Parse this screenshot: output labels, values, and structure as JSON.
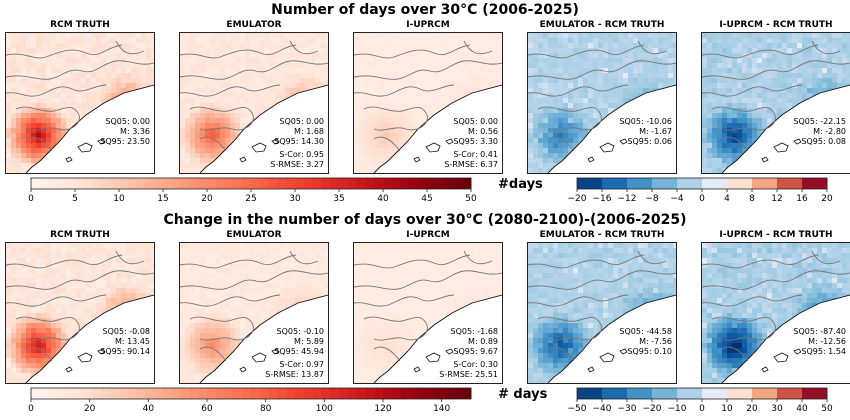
{
  "figure": {
    "rows": [
      {
        "title": "Number of days over 30°C (2006-2025)",
        "colorbar_label": "#days",
        "seq_cmap": {
          "ticks": [
            0,
            5,
            10,
            15,
            20,
            25,
            30,
            35,
            40,
            45,
            50
          ],
          "range": [
            0,
            50
          ]
        },
        "div_cmap": {
          "ticks": [
            -20,
            -16,
            -12,
            -8,
            -4,
            0,
            4,
            8,
            12,
            16,
            20
          ],
          "range": [
            -20,
            20
          ]
        },
        "panels": [
          {
            "title": "RCM TRUTH",
            "kind": "seq",
            "intensity": 0.75,
            "lines": [
              "SQ05: 0.00",
              "M: 3.36",
              "SQ95: 23.50"
            ],
            "extra": []
          },
          {
            "title": "EMULATOR",
            "kind": "seq",
            "intensity": 0.5,
            "lines": [
              "SQ05: 0.00",
              "M: 1.68",
              "SQ95: 14.30"
            ],
            "extra": [
              "S-Cor: 0.95",
              "S-RMSE: 3.27"
            ]
          },
          {
            "title": "I-UPRCM",
            "kind": "seq",
            "intensity": 0.15,
            "lines": [
              "SQ05: 0.00",
              "M: 0.56",
              "SQ95: 3.30"
            ],
            "extra": [
              "S-Cor: 0.41",
              "S-RMSE: 6.37"
            ]
          },
          {
            "title": "EMULATOR - RCM TRUTH",
            "kind": "div",
            "intensity": 0.55,
            "lines": [
              "SQ05: -10.06",
              "M: -1.67",
              "SQ95: 0.06"
            ],
            "extra": []
          },
          {
            "title": "I-UPRCM - RCM TRUTH",
            "kind": "div",
            "intensity": 0.85,
            "lines": [
              "SQ05: -22.15",
              "M: -2.80",
              "SQ95: 0.08"
            ],
            "extra": []
          }
        ]
      },
      {
        "title": "Change in the number of days over 30°C (2080-2100)-(2006-2025)",
        "colorbar_label": "# days",
        "seq_cmap": {
          "ticks": [
            0,
            20,
            40,
            60,
            80,
            100,
            120,
            140
          ],
          "range": [
            0,
            150
          ]
        },
        "div_cmap": {
          "ticks": [
            -50,
            -40,
            -30,
            -20,
            -10,
            0,
            10,
            20,
            30,
            40,
            50
          ],
          "range": [
            -50,
            50
          ]
        },
        "panels": [
          {
            "title": "RCM TRUTH",
            "kind": "seq",
            "intensity": 0.7,
            "lines": [
              "SQ05: -0.08",
              "M: 13.45",
              "SQ95: 90.14"
            ],
            "extra": []
          },
          {
            "title": "EMULATOR",
            "kind": "seq",
            "intensity": 0.35,
            "lines": [
              "SQ05: -0.10",
              "M: 5.89",
              "SQ95: 45.94"
            ],
            "extra": [
              "S-Cor: 0.97",
              "S-RMSE: 13.87"
            ]
          },
          {
            "title": "I-UPRCM",
            "kind": "seq",
            "intensity": 0.08,
            "lines": [
              "SQ05: -1.68",
              "M: 0.89",
              "SQ95: 9.67"
            ],
            "extra": [
              "S-Cor: 0.30",
              "S-RMSE: 25.51"
            ]
          },
          {
            "title": "EMULATOR - RCM TRUTH",
            "kind": "div",
            "intensity": 0.75,
            "lines": [
              "SQ05: -44.58",
              "M: -7.56",
              "SQ95: 0.10"
            ],
            "extra": []
          },
          {
            "title": "I-UPRCM - RCM TRUTH",
            "kind": "div",
            "intensity": 1.0,
            "lines": [
              "SQ05: -87.40",
              "M: -12.56",
              "SQ95: 1.54"
            ],
            "extra": []
          }
        ]
      }
    ]
  },
  "chart_data": [
    {
      "type": "heatmap",
      "title": "Number of days over 30°C (2006-2025)",
      "panels": [
        "RCM TRUTH",
        "EMULATOR",
        "I-UPRCM",
        "EMULATOR - RCM TRUTH",
        "I-UPRCM - RCM TRUTH"
      ],
      "stats": {
        "RCM TRUTH": {
          "SQ05": 0.0,
          "M": 3.36,
          "SQ95": 23.5
        },
        "EMULATOR": {
          "SQ05": 0.0,
          "M": 1.68,
          "SQ95": 14.3,
          "S-Cor": 0.95,
          "S-RMSE": 3.27
        },
        "I-UPRCM": {
          "SQ05": 0.0,
          "M": 0.56,
          "SQ95": 3.3,
          "S-Cor": 0.41,
          "S-RMSE": 6.37
        },
        "EMULATOR - RCM TRUTH": {
          "SQ05": -10.06,
          "M": -1.67,
          "SQ95": 0.06
        },
        "I-UPRCM - RCM TRUTH": {
          "SQ05": -22.15,
          "M": -2.8,
          "SQ95": 0.08
        }
      },
      "colorbar_seq": [
        0,
        50
      ],
      "colorbar_div": [
        -20,
        20
      ],
      "colorbar_label": "#days"
    },
    {
      "type": "heatmap",
      "title": "Change in the number of days over 30°C (2080-2100)-(2006-2025)",
      "panels": [
        "RCM TRUTH",
        "EMULATOR",
        "I-UPRCM",
        "EMULATOR - RCM TRUTH",
        "I-UPRCM - RCM TRUTH"
      ],
      "stats": {
        "RCM TRUTH": {
          "SQ05": -0.08,
          "M": 13.45,
          "SQ95": 90.14
        },
        "EMULATOR": {
          "SQ05": -0.1,
          "M": 5.89,
          "SQ95": 45.94,
          "S-Cor": 0.97,
          "S-RMSE": 13.87
        },
        "I-UPRCM": {
          "SQ05": -1.68,
          "M": 0.89,
          "SQ95": 9.67,
          "S-Cor": 0.3,
          "S-RMSE": 25.51
        },
        "EMULATOR - RCM TRUTH": {
          "SQ05": -44.58,
          "M": -7.56,
          "SQ95": 0.1
        },
        "I-UPRCM - RCM TRUTH": {
          "SQ05": -87.4,
          "M": -12.56,
          "SQ95": 1.54
        }
      },
      "colorbar_seq": [
        0,
        150
      ],
      "colorbar_div": [
        -50,
        50
      ],
      "colorbar_label": "# days"
    }
  ]
}
